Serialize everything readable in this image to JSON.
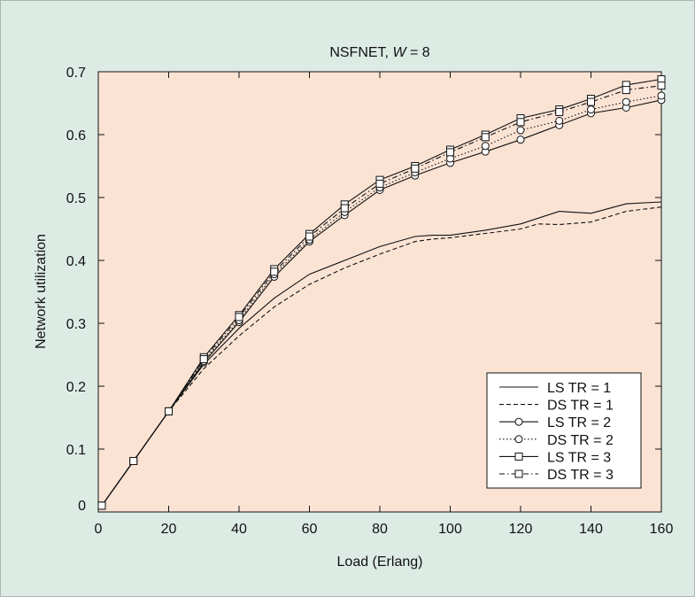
{
  "chart_data": {
    "type": "line",
    "title_prefix": "NSFNET, ",
    "title_var": "W",
    "title_suffix": " = 8",
    "xlabel": "Load (Erlang)",
    "ylabel": "Network utilization",
    "xlim": [
      0,
      160
    ],
    "ylim": [
      0,
      0.7
    ],
    "xticks": [
      0,
      20,
      40,
      60,
      80,
      100,
      120,
      140,
      160
    ],
    "yticks": [
      0,
      0.1,
      0.2,
      0.3,
      0.4,
      0.5,
      0.6,
      0.7
    ],
    "grid": false,
    "legend_position": "bottom-right",
    "colors": {
      "plot_bg": "#fbe3d4",
      "frame_bg": "#ddebe5",
      "line": "#111111"
    },
    "series": [
      {
        "name": "LS TR = 1",
        "dash": "solid",
        "marker": "none",
        "x": [
          1,
          10,
          20,
          30,
          40,
          50,
          60,
          70,
          80,
          90,
          95,
          100,
          110,
          120,
          131,
          140,
          150,
          160
        ],
        "y": [
          0.01,
          0.081,
          0.16,
          0.235,
          0.292,
          0.34,
          0.378,
          0.4,
          0.422,
          0.438,
          0.44,
          0.44,
          0.448,
          0.458,
          0.478,
          0.475,
          0.49,
          0.493
        ]
      },
      {
        "name": "DS TR = 1",
        "dash": "dashed",
        "marker": "none",
        "x": [
          1,
          10,
          20,
          30,
          40,
          50,
          60,
          70,
          80,
          90,
          95,
          100,
          110,
          120,
          125,
          131,
          140,
          150,
          160
        ],
        "y": [
          0.01,
          0.081,
          0.16,
          0.228,
          0.28,
          0.326,
          0.362,
          0.388,
          0.41,
          0.43,
          0.434,
          0.436,
          0.443,
          0.45,
          0.458,
          0.457,
          0.461,
          0.478,
          0.485
        ]
      },
      {
        "name": "LS TR = 2",
        "dash": "solid",
        "marker": "circle",
        "x": [
          1,
          10,
          20,
          30,
          40,
          50,
          60,
          70,
          80,
          90,
          100,
          110,
          120,
          131,
          140,
          150,
          160
        ],
        "y": [
          0.01,
          0.081,
          0.16,
          0.238,
          0.302,
          0.374,
          0.43,
          0.472,
          0.512,
          0.535,
          0.555,
          0.573,
          0.592,
          0.615,
          0.634,
          0.643,
          0.655
        ]
      },
      {
        "name": "DS TR = 2",
        "dash": "dotted",
        "marker": "circle",
        "x": [
          1,
          10,
          20,
          30,
          40,
          50,
          60,
          70,
          80,
          90,
          100,
          110,
          120,
          131,
          140,
          150,
          160
        ],
        "y": [
          0.01,
          0.081,
          0.16,
          0.24,
          0.305,
          0.378,
          0.433,
          0.477,
          0.516,
          0.54,
          0.562,
          0.582,
          0.607,
          0.622,
          0.64,
          0.652,
          0.662
        ]
      },
      {
        "name": "LS TR = 3",
        "dash": "solid",
        "marker": "square",
        "x": [
          1,
          10,
          20,
          30,
          40,
          50,
          60,
          70,
          80,
          90,
          100,
          110,
          120,
          131,
          140,
          150,
          160
        ],
        "y": [
          0.01,
          0.081,
          0.16,
          0.246,
          0.313,
          0.386,
          0.442,
          0.489,
          0.528,
          0.55,
          0.576,
          0.6,
          0.626,
          0.64,
          0.657,
          0.679,
          0.688
        ]
      },
      {
        "name": "DS TR = 3",
        "dash": "dashdot",
        "marker": "square",
        "x": [
          1,
          10,
          20,
          30,
          40,
          50,
          60,
          70,
          80,
          90,
          100,
          110,
          120,
          131,
          140,
          150,
          160
        ],
        "y": [
          0.01,
          0.081,
          0.16,
          0.243,
          0.31,
          0.382,
          0.438,
          0.483,
          0.522,
          0.546,
          0.572,
          0.596,
          0.62,
          0.636,
          0.652,
          0.671,
          0.678
        ]
      }
    ]
  }
}
